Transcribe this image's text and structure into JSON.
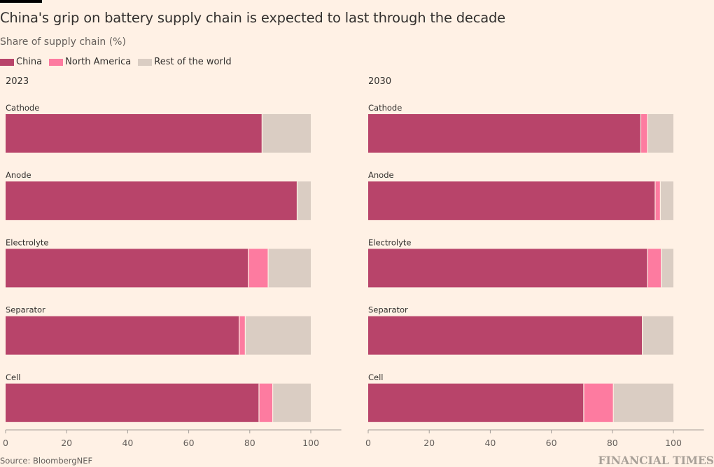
{
  "title": "China's grip on battery supply chain is expected to last through the decade",
  "subtitle": "Share of supply chain (%)",
  "legend": [
    {
      "label": "China",
      "color": "#b8446a"
    },
    {
      "label": "North America",
      "color": "#fd7ba0"
    },
    {
      "label": "Rest of the world",
      "color": "#dacdc3"
    }
  ],
  "source": "Source: BloombergNEF",
  "brand": "FINANCIAL TIMES",
  "chart_data": [
    {
      "type": "bar",
      "orientation": "horizontal",
      "stacked": true,
      "title": "2023",
      "categories": [
        "Cathode",
        "Anode",
        "Electrolyte",
        "Separator",
        "Cell"
      ],
      "series": [
        {
          "name": "China",
          "color": "#b8446a",
          "values": [
            84,
            95.5,
            79.5,
            76.5,
            83
          ]
        },
        {
          "name": "North America",
          "color": "#fd7ba0",
          "values": [
            0,
            0,
            6.5,
            2,
            4.5
          ]
        },
        {
          "name": "Rest of the world",
          "color": "#dacdc3",
          "values": [
            16,
            4.5,
            14,
            21.5,
            12.5
          ]
        }
      ],
      "xlim": [
        0,
        110
      ],
      "xticks": [
        0,
        20,
        40,
        60,
        80,
        100
      ],
      "xlabel": "",
      "ylabel": "",
      "grid": false
    },
    {
      "type": "bar",
      "orientation": "horizontal",
      "stacked": true,
      "title": "2030",
      "categories": [
        "Cathode",
        "Anode",
        "Electrolyte",
        "Separator",
        "Cell"
      ],
      "series": [
        {
          "name": "China",
          "color": "#b8446a",
          "values": [
            89.3,
            94,
            91.5,
            89.8,
            70.6
          ]
        },
        {
          "name": "North America",
          "color": "#fd7ba0",
          "values": [
            2.2,
            1.7,
            4.5,
            0,
            9.7
          ]
        },
        {
          "name": "Rest of the world",
          "color": "#dacdc3",
          "values": [
            8.5,
            4.3,
            4,
            10.2,
            19.7
          ]
        }
      ],
      "xlim": [
        0,
        110
      ],
      "xticks": [
        0,
        20,
        40,
        60,
        80,
        100
      ],
      "xlabel": "",
      "ylabel": "",
      "grid": false
    }
  ]
}
